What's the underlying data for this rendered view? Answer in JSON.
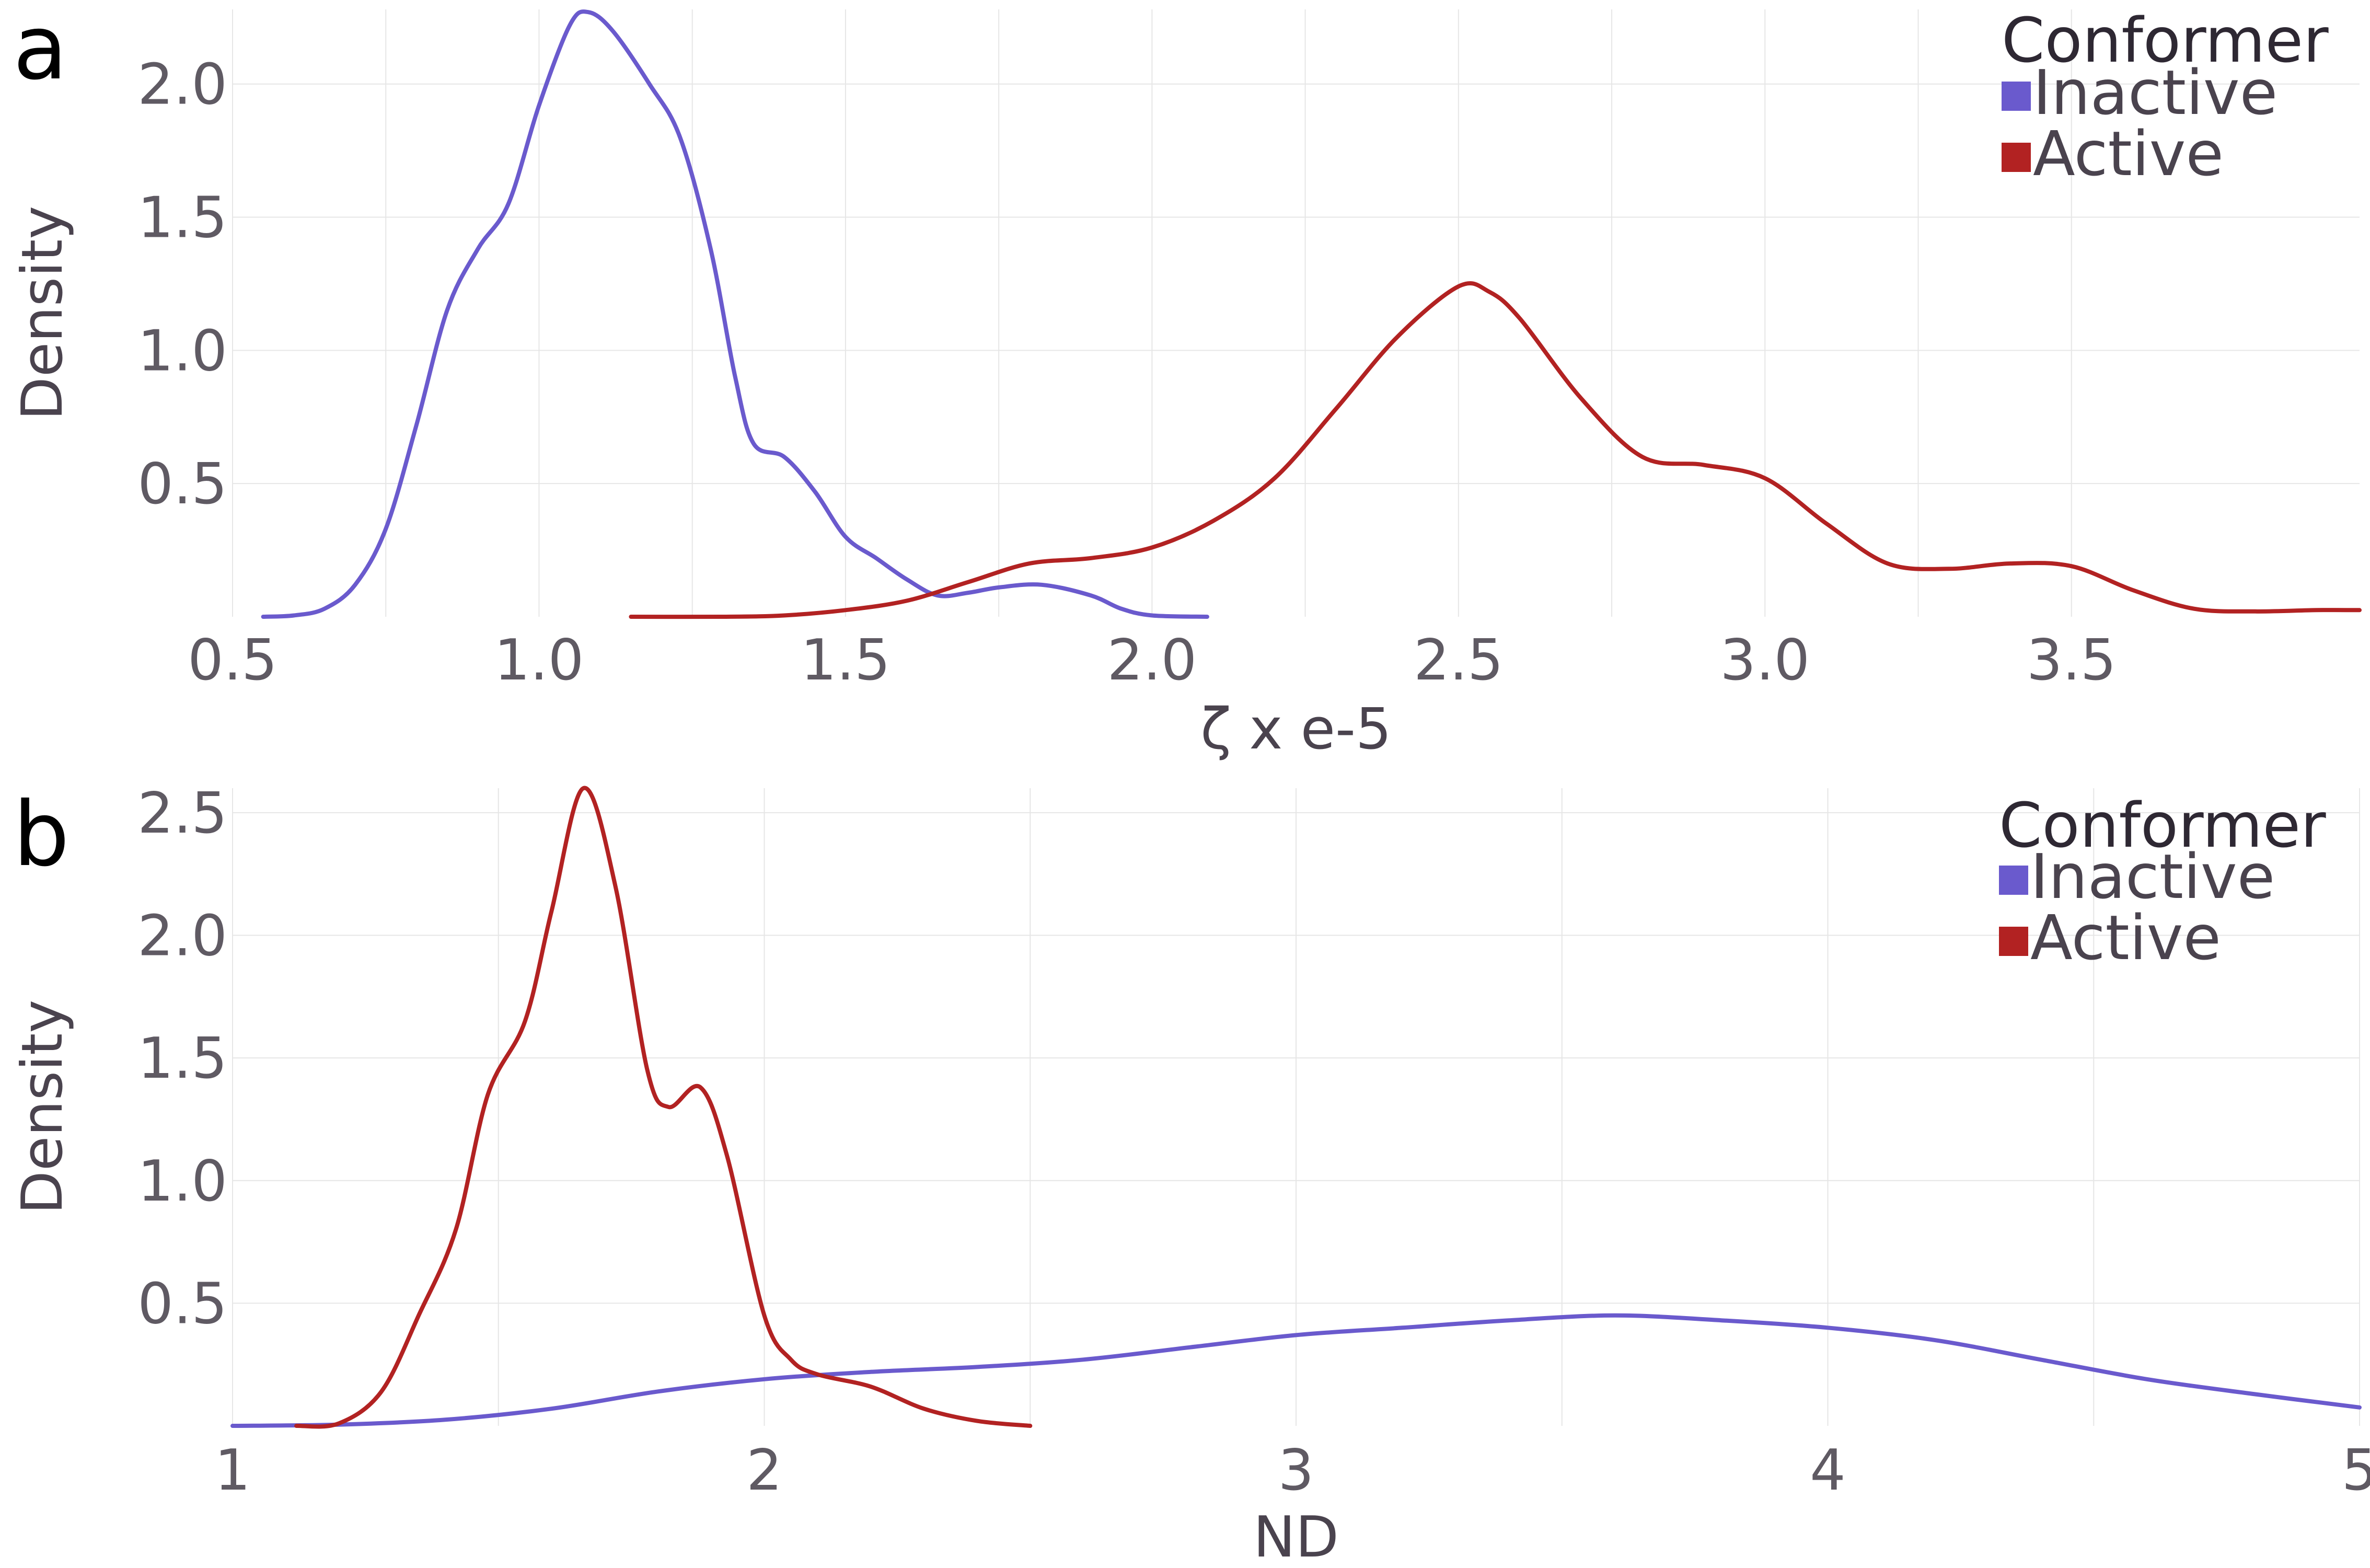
{
  "colors": {
    "inactive": "#6a5acd",
    "active": "#b22222"
  },
  "chart_data": [
    {
      "type": "line",
      "panel_label": "a",
      "xlabel": "ζ x e-5",
      "ylabel": "Density",
      "xlim": [
        0.5,
        3.97
      ],
      "ylim": [
        0,
        2.28
      ],
      "x_ticks": [
        0.5,
        1.0,
        1.5,
        2.0,
        2.5,
        3.0,
        3.5
      ],
      "x_tick_labels": [
        "0.5",
        "1.0",
        "1.5",
        "2.0",
        "2.5",
        "3.0",
        "3.5"
      ],
      "y_ticks": [
        0.5,
        1.0,
        1.5,
        2.0
      ],
      "y_tick_labels": [
        "0.5",
        "1.0",
        "1.5",
        "2.0"
      ],
      "grid": true,
      "legend": {
        "title": "Conformer",
        "position": "top-right"
      },
      "series": [
        {
          "name": "Inactive",
          "color_key": "inactive",
          "points": [
            [
              0.55,
              0.0
            ],
            [
              0.6,
              0.005
            ],
            [
              0.65,
              0.03
            ],
            [
              0.7,
              0.12
            ],
            [
              0.75,
              0.33
            ],
            [
              0.8,
              0.72
            ],
            [
              0.85,
              1.15
            ],
            [
              0.9,
              1.38
            ],
            [
              0.95,
              1.55
            ],
            [
              1.0,
              1.92
            ],
            [
              1.05,
              2.22
            ],
            [
              1.08,
              2.27
            ],
            [
              1.12,
              2.2
            ],
            [
              1.18,
              2.0
            ],
            [
              1.23,
              1.8
            ],
            [
              1.28,
              1.38
            ],
            [
              1.32,
              0.9
            ],
            [
              1.35,
              0.65
            ],
            [
              1.4,
              0.6
            ],
            [
              1.45,
              0.47
            ],
            [
              1.5,
              0.3
            ],
            [
              1.55,
              0.22
            ],
            [
              1.6,
              0.14
            ],
            [
              1.65,
              0.08
            ],
            [
              1.7,
              0.09
            ],
            [
              1.75,
              0.11
            ],
            [
              1.82,
              0.12
            ],
            [
              1.9,
              0.08
            ],
            [
              1.95,
              0.03
            ],
            [
              2.0,
              0.005
            ],
            [
              2.09,
              0.0
            ]
          ]
        },
        {
          "name": "Active",
          "color_key": "active",
          "points": [
            [
              1.15,
              0.0
            ],
            [
              1.3,
              0.0
            ],
            [
              1.4,
              0.005
            ],
            [
              1.5,
              0.025
            ],
            [
              1.6,
              0.06
            ],
            [
              1.7,
              0.13
            ],
            [
              1.8,
              0.2
            ],
            [
              1.9,
              0.22
            ],
            [
              2.0,
              0.26
            ],
            [
              2.1,
              0.36
            ],
            [
              2.2,
              0.52
            ],
            [
              2.3,
              0.78
            ],
            [
              2.4,
              1.05
            ],
            [
              2.5,
              1.24
            ],
            [
              2.55,
              1.22
            ],
            [
              2.6,
              1.12
            ],
            [
              2.7,
              0.82
            ],
            [
              2.8,
              0.6
            ],
            [
              2.9,
              0.57
            ],
            [
              3.0,
              0.52
            ],
            [
              3.1,
              0.35
            ],
            [
              3.2,
              0.2
            ],
            [
              3.3,
              0.18
            ],
            [
              3.4,
              0.2
            ],
            [
              3.5,
              0.19
            ],
            [
              3.6,
              0.1
            ],
            [
              3.7,
              0.03
            ],
            [
              3.8,
              0.02
            ],
            [
              3.9,
              0.025
            ],
            [
              3.97,
              0.025
            ]
          ]
        }
      ]
    },
    {
      "type": "line",
      "panel_label": "b",
      "xlabel": "ND",
      "ylabel": "Density",
      "xlim": [
        1,
        5
      ],
      "ylim": [
        0,
        2.6
      ],
      "x_ticks": [
        1,
        2,
        3,
        4,
        5
      ],
      "x_tick_labels": [
        "1",
        "2",
        "3",
        "4",
        "5"
      ],
      "y_ticks": [
        0.5,
        1.0,
        1.5,
        2.0,
        2.5
      ],
      "y_tick_labels": [
        "0.5",
        "1.0",
        "1.5",
        "2.0",
        "2.5"
      ],
      "grid": true,
      "legend": {
        "title": "Conformer",
        "position": "top-right"
      },
      "series": [
        {
          "name": "Inactive",
          "color_key": "inactive",
          "points": [
            [
              1.0,
              0.0
            ],
            [
              1.2,
              0.005
            ],
            [
              1.4,
              0.025
            ],
            [
              1.6,
              0.07
            ],
            [
              1.8,
              0.14
            ],
            [
              2.0,
              0.19
            ],
            [
              2.2,
              0.22
            ],
            [
              2.4,
              0.24
            ],
            [
              2.6,
              0.27
            ],
            [
              2.8,
              0.32
            ],
            [
              3.0,
              0.37
            ],
            [
              3.2,
              0.4
            ],
            [
              3.4,
              0.43
            ],
            [
              3.6,
              0.45
            ],
            [
              3.8,
              0.43
            ],
            [
              4.0,
              0.4
            ],
            [
              4.2,
              0.35
            ],
            [
              4.4,
              0.27
            ],
            [
              4.6,
              0.19
            ],
            [
              4.8,
              0.13
            ],
            [
              5.0,
              0.075
            ]
          ]
        },
        {
          "name": "Active",
          "color_key": "active",
          "points": [
            [
              1.12,
              0.0
            ],
            [
              1.2,
              0.01
            ],
            [
              1.28,
              0.14
            ],
            [
              1.35,
              0.45
            ],
            [
              1.42,
              0.8
            ],
            [
              1.48,
              1.35
            ],
            [
              1.55,
              1.65
            ],
            [
              1.6,
              2.1
            ],
            [
              1.66,
              2.6
            ],
            [
              1.72,
              2.2
            ],
            [
              1.78,
              1.45
            ],
            [
              1.82,
              1.3
            ],
            [
              1.88,
              1.38
            ],
            [
              1.93,
              1.1
            ],
            [
              2.0,
              0.45
            ],
            [
              2.05,
              0.27
            ],
            [
              2.1,
              0.21
            ],
            [
              2.2,
              0.16
            ],
            [
              2.3,
              0.07
            ],
            [
              2.4,
              0.02
            ],
            [
              2.5,
              0.0
            ]
          ]
        }
      ]
    }
  ]
}
